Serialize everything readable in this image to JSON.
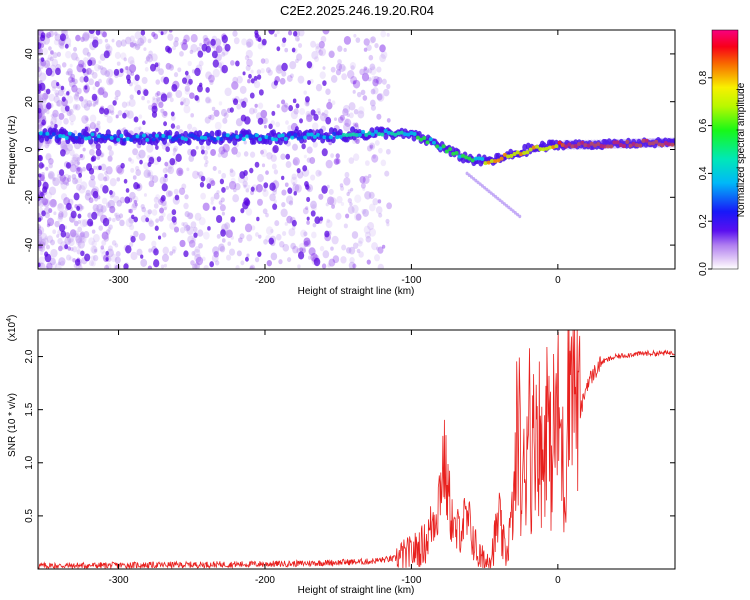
{
  "title": "C2E2.2025.246.19.20.R04",
  "chart_data": [
    {
      "type": "heatmap",
      "xlabel": "Height of straight line (km)",
      "ylabel": "Frequency (Hz)",
      "xlim": [
        -355,
        80
      ],
      "ylim": [
        -50,
        50
      ],
      "x_ticks": [
        -300,
        -200,
        -100,
        0
      ],
      "x_tick_labels": [
        "-300",
        "-200",
        "-100",
        "0"
      ],
      "y_ticks": [
        -40,
        -20,
        0,
        20,
        40
      ],
      "y_tick_labels": [
        "-40",
        "-20",
        "0",
        "20",
        "40"
      ],
      "ridge": {
        "x": [
          -350,
          -300,
          -250,
          -200,
          -150,
          -120,
          -100,
          -85,
          -70,
          -60,
          -50,
          -40,
          -30,
          -20,
          -10,
          0,
          20,
          50,
          80
        ],
        "freq": [
          6,
          5,
          5,
          5,
          6,
          7,
          6,
          3,
          -2,
          -4,
          -5,
          -4,
          -2,
          0,
          1,
          2,
          2,
          2.5,
          3
        ]
      },
      "colorbar": {
        "label": "Normalized spectral amplitude",
        "ticks": [
          0.0,
          0.2,
          0.4,
          0.6,
          0.8
        ],
        "tick_labels": [
          "0.0",
          "0.2",
          "0.4",
          "0.6",
          "0.8"
        ],
        "range": [
          0,
          1
        ]
      }
    },
    {
      "type": "line",
      "xlabel": "Height of straight line (km)",
      "ylabel": "SNR (10 * v/v)",
      "multiplier": "(x10",
      "multiplier_exp": "4",
      "multiplier_close": ")",
      "xlim": [
        -355,
        80
      ],
      "ylim": [
        0,
        2.25
      ],
      "x_ticks": [
        -300,
        -200,
        -100,
        0
      ],
      "x_tick_labels": [
        "-300",
        "-200",
        "-100",
        "0"
      ],
      "y_ticks": [
        0.5,
        1.0,
        1.5,
        2.0
      ],
      "y_tick_labels": [
        "0.5",
        "1.0",
        "1.5",
        "2.0"
      ],
      "color": "#e8201e",
      "series": {
        "name": "SNR",
        "x": [
          -355,
          -250,
          -180,
          -130,
          -110,
          -100,
          -90,
          -82,
          -78,
          -75,
          -70,
          -65,
          -60,
          -55,
          -50,
          -45,
          -42,
          -40,
          -38,
          -35,
          -30,
          -27,
          -25,
          -22,
          -20,
          -18,
          -15,
          -12,
          -10,
          -8,
          -5,
          -3,
          0,
          2,
          5,
          7,
          8,
          10,
          12,
          15,
          20,
          25,
          30,
          40,
          50,
          60,
          70,
          80
        ],
        "y": [
          0.03,
          0.04,
          0.05,
          0.07,
          0.1,
          0.15,
          0.25,
          0.6,
          1.05,
          0.7,
          0.3,
          0.45,
          0.4,
          0.15,
          0.05,
          0.15,
          0.35,
          0.5,
          0.25,
          0.15,
          0.6,
          1.55,
          0.7,
          0.9,
          1.9,
          0.9,
          1.5,
          1.2,
          0.9,
          1.65,
          1.0,
          1.3,
          1.45,
          1.25,
          0.65,
          2.2,
          1.8,
          2.2,
          1.7,
          1.45,
          1.75,
          1.85,
          1.95,
          2.0,
          2.02,
          2.03,
          2.03,
          2.04
        ]
      }
    }
  ]
}
